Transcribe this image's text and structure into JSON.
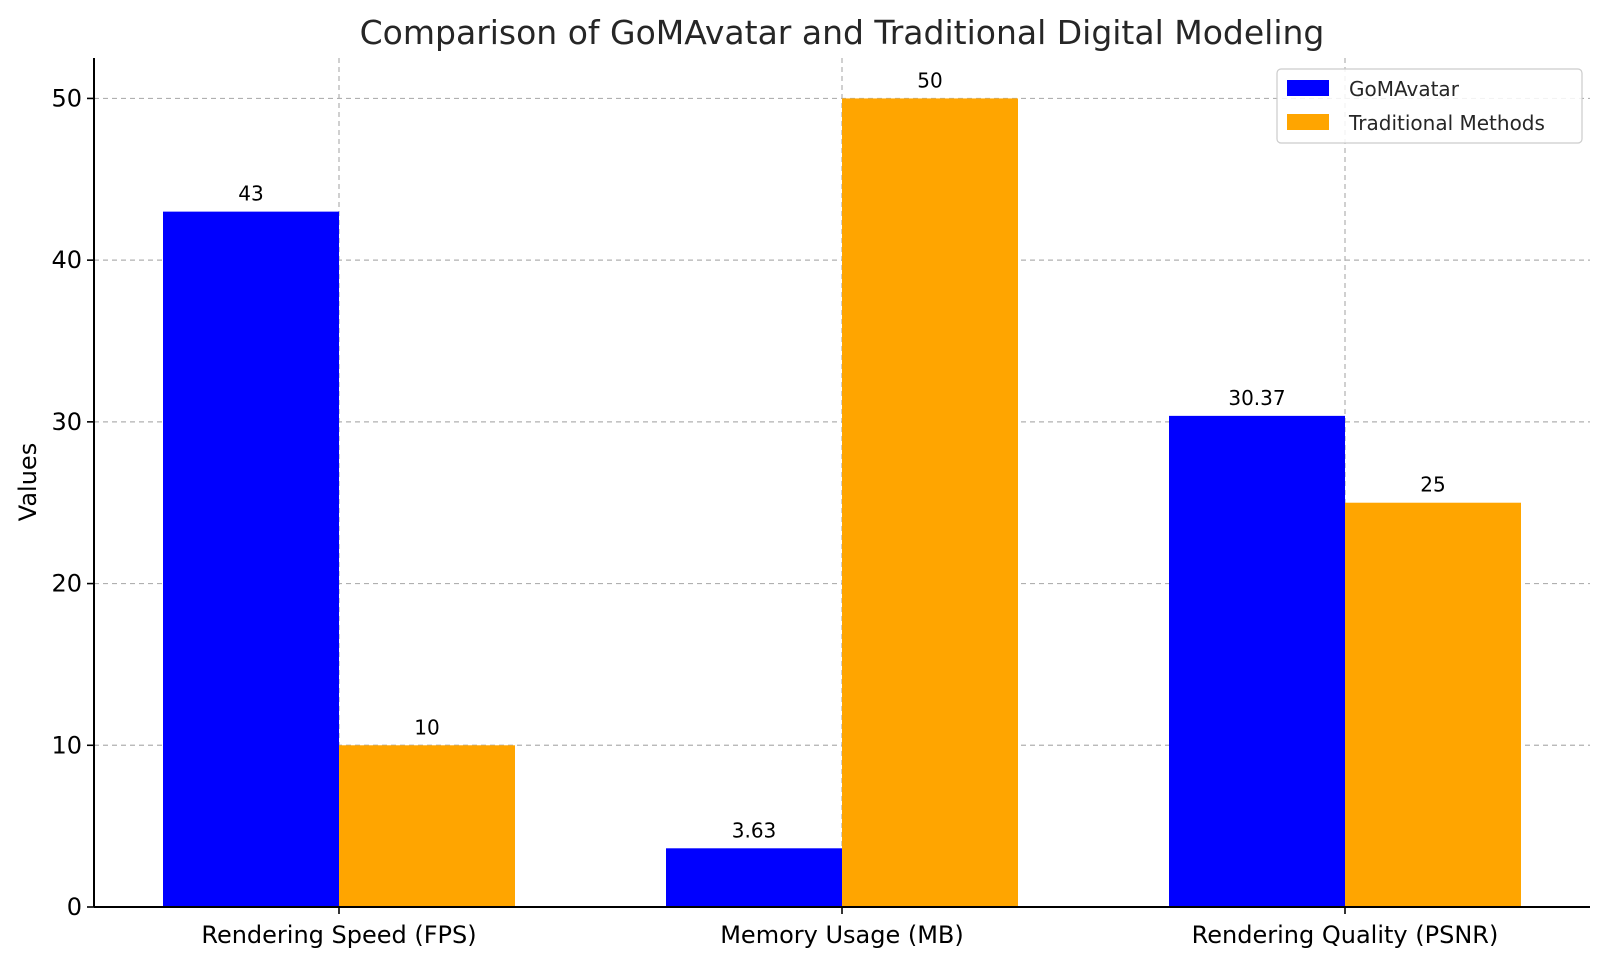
{
  "chart_data": {
    "type": "bar",
    "title": "Comparison of GoMAvatar and Traditional Digital Modeling",
    "xlabel": "",
    "ylabel": "Values",
    "categories": [
      "Rendering Speed (FPS)",
      "Memory Usage (MB)",
      "Rendering Quality (PSNR)"
    ],
    "series": [
      {
        "name": "GoMAvatar",
        "color": "#0000ff",
        "values": [
          43,
          3.63,
          30.37
        ],
        "labels": [
          "43",
          "3.63",
          "30.37"
        ]
      },
      {
        "name": "Traditional Methods",
        "color": "#ffa500",
        "values": [
          10,
          50,
          25
        ],
        "labels": [
          "10",
          "50",
          "25"
        ]
      }
    ],
    "ylim": [
      0,
      52.5
    ],
    "yticks": [
      0,
      10,
      20,
      30,
      40,
      50
    ],
    "ytick_labels": [
      "0",
      "10",
      "20",
      "30",
      "40",
      "50"
    ],
    "grid": true,
    "legend_position": "top-right"
  }
}
